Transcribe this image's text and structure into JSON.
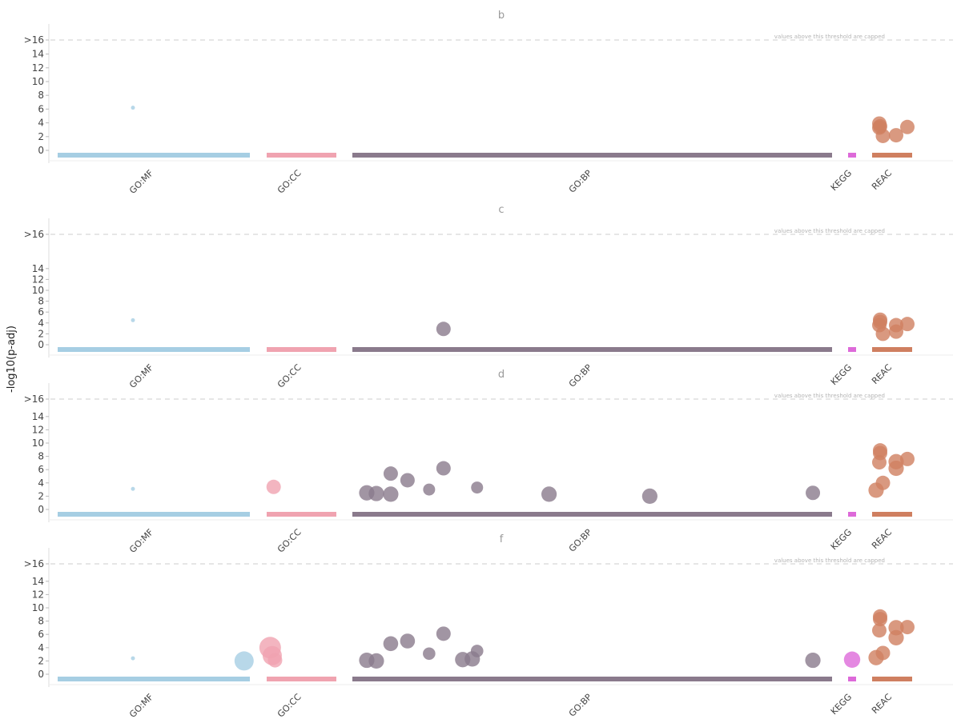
{
  "figure": {
    "ylabel": "-log10(p-adj)",
    "cap_label": ">16",
    "threshold_note": "values above this threshold are capped",
    "y_ticks": [
      "0",
      "2",
      "4",
      "6",
      "8",
      "10",
      "12",
      "14"
    ],
    "sources": [
      {
        "key": "GO:MF",
        "label": "GO:MF",
        "color": "#a6cee3"
      },
      {
        "key": "GO:CC",
        "label": "GO:CC",
        "color": "#f0a3b0"
      },
      {
        "key": "GO:BP",
        "label": "GO:BP",
        "color": "#8a7a8c"
      },
      {
        "key": "KEGG",
        "label": "KEGG",
        "color": "#dd6ad9"
      },
      {
        "key": "REAC",
        "label": "REAC",
        "color": "#cf7f60"
      }
    ]
  },
  "chart_data": [
    {
      "type": "scatter",
      "title": "b",
      "ylim": [
        0,
        16
      ],
      "points": [
        {
          "source": "GO:MF",
          "x": 0.22,
          "y": 6.2,
          "size": 1
        },
        {
          "source": "REAC",
          "x": 0.18,
          "y": 3.9,
          "size": 3
        },
        {
          "source": "REAC",
          "x": 0.2,
          "y": 3.5,
          "size": 3
        },
        {
          "source": "REAC",
          "x": 0.18,
          "y": 3.3,
          "size": 3
        },
        {
          "source": "REAC",
          "x": 0.27,
          "y": 2.1,
          "size": 3
        },
        {
          "source": "REAC",
          "x": 0.6,
          "y": 2.2,
          "size": 3
        },
        {
          "source": "REAC",
          "x": 0.88,
          "y": 3.4,
          "size": 3
        }
      ]
    },
    {
      "type": "scatter",
      "title": "c",
      "ylim": [
        0,
        16
      ],
      "points": [
        {
          "source": "GO:MF",
          "x": 0.22,
          "y": 4.5,
          "size": 1
        },
        {
          "source": "GO:BP",
          "x": 0.19,
          "y": 2.9,
          "size": 3
        },
        {
          "source": "REAC",
          "x": 0.2,
          "y": 4.6,
          "size": 3
        },
        {
          "source": "REAC",
          "x": 0.2,
          "y": 4.2,
          "size": 3
        },
        {
          "source": "REAC",
          "x": 0.18,
          "y": 3.6,
          "size": 3
        },
        {
          "source": "REAC",
          "x": 0.27,
          "y": 2.0,
          "size": 3
        },
        {
          "source": "REAC",
          "x": 0.6,
          "y": 3.6,
          "size": 3
        },
        {
          "source": "REAC",
          "x": 0.6,
          "y": 2.4,
          "size": 3
        },
        {
          "source": "REAC",
          "x": 0.88,
          "y": 3.8,
          "size": 3
        }
      ]
    },
    {
      "type": "scatter",
      "title": "d",
      "ylim": [
        0,
        16
      ],
      "points": [
        {
          "source": "GO:MF",
          "x": 0.22,
          "y": 3.1,
          "size": 1
        },
        {
          "source": "GO:CC",
          "x": 0.1,
          "y": 3.4,
          "size": 3
        },
        {
          "source": "GO:BP",
          "x": 0.03,
          "y": 2.5,
          "size": 3.2
        },
        {
          "source": "GO:BP",
          "x": 0.05,
          "y": 2.4,
          "size": 3.2
        },
        {
          "source": "GO:BP",
          "x": 0.08,
          "y": 2.3,
          "size": 3.2
        },
        {
          "source": "GO:BP",
          "x": 0.08,
          "y": 5.4,
          "size": 3
        },
        {
          "source": "GO:BP",
          "x": 0.115,
          "y": 4.4,
          "size": 3
        },
        {
          "source": "GO:BP",
          "x": 0.16,
          "y": 3.0,
          "size": 2.5
        },
        {
          "source": "GO:BP",
          "x": 0.19,
          "y": 6.2,
          "size": 3
        },
        {
          "source": "GO:BP",
          "x": 0.26,
          "y": 3.3,
          "size": 2.5
        },
        {
          "source": "GO:BP",
          "x": 0.41,
          "y": 2.3,
          "size": 3.2
        },
        {
          "source": "GO:BP",
          "x": 0.62,
          "y": 2.0,
          "size": 3.2
        },
        {
          "source": "GO:BP",
          "x": 0.96,
          "y": 2.5,
          "size": 3
        },
        {
          "source": "REAC",
          "x": 0.2,
          "y": 8.9,
          "size": 3
        },
        {
          "source": "REAC",
          "x": 0.2,
          "y": 8.5,
          "size": 3
        },
        {
          "source": "REAC",
          "x": 0.18,
          "y": 7.1,
          "size": 3
        },
        {
          "source": "REAC",
          "x": 0.27,
          "y": 4.0,
          "size": 3
        },
        {
          "source": "REAC",
          "x": 0.1,
          "y": 2.9,
          "size": 3.2
        },
        {
          "source": "REAC",
          "x": 0.6,
          "y": 7.2,
          "size": 3.2
        },
        {
          "source": "REAC",
          "x": 0.6,
          "y": 6.2,
          "size": 3.2
        },
        {
          "source": "REAC",
          "x": 0.88,
          "y": 7.6,
          "size": 3
        }
      ]
    },
    {
      "type": "scatter",
      "title": "f",
      "ylim": [
        0,
        16
      ],
      "points": [
        {
          "source": "GO:MF",
          "x": 0.22,
          "y": 2.4,
          "size": 1
        },
        {
          "source": "GO:MF",
          "x": 0.97,
          "y": 2.0,
          "size": 4
        },
        {
          "source": "GO:CC",
          "x": 0.05,
          "y": 4.0,
          "size": 4.5
        },
        {
          "source": "GO:CC",
          "x": 0.08,
          "y": 2.8,
          "size": 4
        },
        {
          "source": "GO:CC",
          "x": 0.12,
          "y": 2.1,
          "size": 3
        },
        {
          "source": "GO:BP",
          "x": 0.03,
          "y": 2.1,
          "size": 3.2
        },
        {
          "source": "GO:BP",
          "x": 0.05,
          "y": 2.0,
          "size": 3.2
        },
        {
          "source": "GO:BP",
          "x": 0.08,
          "y": 4.6,
          "size": 3.1
        },
        {
          "source": "GO:BP",
          "x": 0.115,
          "y": 5.0,
          "size": 3.1
        },
        {
          "source": "GO:BP",
          "x": 0.16,
          "y": 3.1,
          "size": 2.6
        },
        {
          "source": "GO:BP",
          "x": 0.19,
          "y": 6.1,
          "size": 3
        },
        {
          "source": "GO:BP",
          "x": 0.23,
          "y": 2.2,
          "size": 3.2
        },
        {
          "source": "GO:BP",
          "x": 0.25,
          "y": 2.3,
          "size": 3.2
        },
        {
          "source": "GO:BP",
          "x": 0.26,
          "y": 3.5,
          "size": 2.6
        },
        {
          "source": "GO:BP",
          "x": 0.96,
          "y": 2.1,
          "size": 3.2
        },
        {
          "source": "KEGG",
          "x": 0.5,
          "y": 2.2,
          "size": 3.4
        },
        {
          "source": "REAC",
          "x": 0.2,
          "y": 8.7,
          "size": 3
        },
        {
          "source": "REAC",
          "x": 0.2,
          "y": 8.3,
          "size": 3
        },
        {
          "source": "REAC",
          "x": 0.18,
          "y": 6.6,
          "size": 3
        },
        {
          "source": "REAC",
          "x": 0.27,
          "y": 3.2,
          "size": 3
        },
        {
          "source": "REAC",
          "x": 0.1,
          "y": 2.5,
          "size": 3.2
        },
        {
          "source": "REAC",
          "x": 0.6,
          "y": 7.0,
          "size": 3.2
        },
        {
          "source": "REAC",
          "x": 0.6,
          "y": 5.5,
          "size": 3.2
        },
        {
          "source": "REAC",
          "x": 0.88,
          "y": 7.1,
          "size": 3
        }
      ]
    }
  ]
}
